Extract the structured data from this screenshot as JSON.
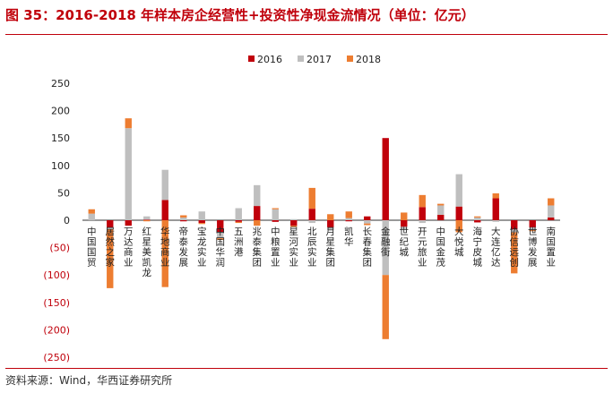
{
  "figure": {
    "title": "图 35：2016-2018 年样本房企经营性+投资性净现金流情况（单位：亿元）",
    "source": "资料来源：Wind，华西证券研究所"
  },
  "chart_data": {
    "type": "bar",
    "categories": [
      "中国国贸",
      "居然之家",
      "万达商业",
      "红星美凯龙",
      "华地商业",
      "帝泰发展",
      "宝龙实业",
      "中国华润",
      "五洲港",
      "兆泰集团",
      "中粮置业",
      "星河实业",
      "北辰实业",
      "月星集团",
      "凯华",
      "长春集团",
      "金融街",
      "世纪城",
      "开元旅业",
      "中国金茂",
      "大悦城",
      "海宁皮城",
      "大连亿达",
      "协信远创",
      "世博发展",
      "南国置业"
    ],
    "series": [
      {
        "name": "2016",
        "color": "#c0000b",
        "values": [
          0,
          -14,
          -10,
          1,
          37,
          -2,
          -5,
          -22,
          -3,
          26,
          -3,
          -10,
          21,
          -13,
          -2,
          7,
          150,
          -12,
          24,
          10,
          25,
          -4,
          40,
          -17,
          -13,
          5
        ]
      },
      {
        "name": "2017",
        "color": "#bfbfbf",
        "values": [
          12,
          -3,
          168,
          6,
          55,
          5,
          16,
          -11,
          22,
          38,
          20,
          2,
          -5,
          -5,
          4,
          -6,
          -100,
          -5,
          -5,
          17,
          59,
          5,
          -3,
          -5,
          -5,
          22
        ]
      },
      {
        "name": "2018",
        "color": "#ed7d31",
        "values": [
          8,
          -107,
          18,
          -2,
          -122,
          4,
          -2,
          -3,
          -2,
          -10,
          2,
          -2,
          38,
          11,
          12,
          -3,
          -117,
          14,
          22,
          3,
          -22,
          2,
          9,
          -75,
          -2,
          13
        ]
      }
    ],
    "ylim": [
      -250,
      250
    ],
    "yticks": [
      250,
      200,
      150,
      100,
      50,
      0,
      -50,
      -100,
      -150,
      -200,
      -250
    ],
    "ytick_labels": [
      "250",
      "200",
      "150",
      "100",
      "50",
      "0",
      "(50)",
      "(100)",
      "(150)",
      "(200)",
      "(250)"
    ],
    "stacked": true,
    "legend_position": "top-center",
    "grid": false,
    "negative_tick_color": "#c0000b",
    "positive_tick_color": "#222222"
  }
}
